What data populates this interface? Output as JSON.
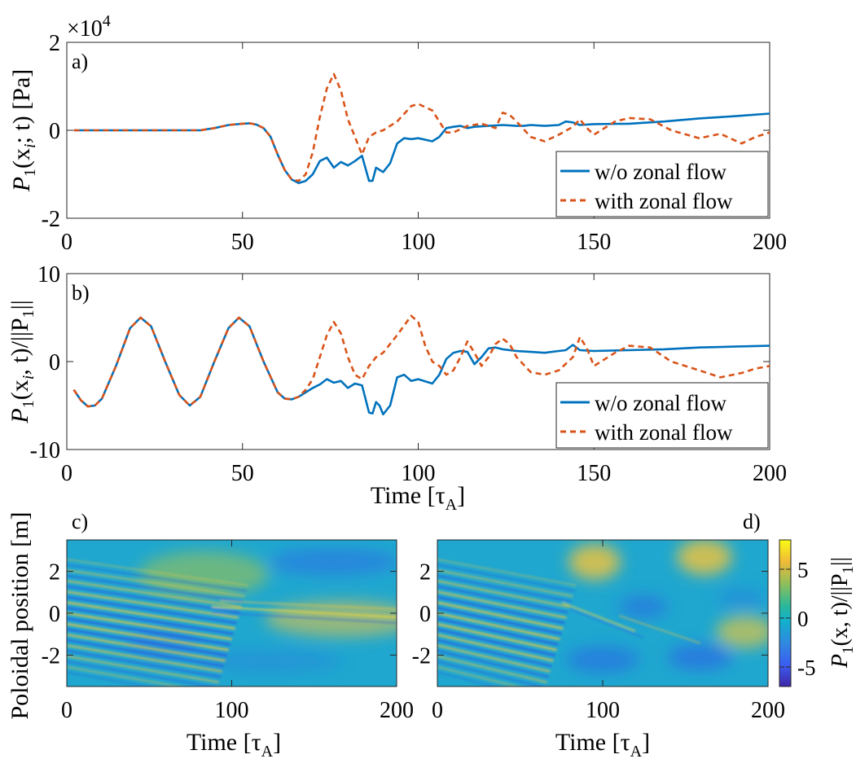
{
  "chart_data": [
    {
      "type": "line",
      "panel_label": "a)",
      "exponent_label": "×10",
      "exponent_power": "4",
      "ylabel_main": "P",
      "ylabel_sub": "1",
      "ylabel_rest": "(x",
      "ylabel_sub2": "i",
      "ylabel_end": "; t)  [Pa]",
      "xlim": [
        0,
        200
      ],
      "ylim": [
        -2,
        2
      ],
      "xticks": [
        "0",
        "50",
        "100",
        "150",
        "200"
      ],
      "yticks": [
        "-2",
        "0",
        "2"
      ],
      "legend_position": "bottom-right",
      "series": [
        {
          "name": "w/o zonal flow",
          "color": "#0072BD",
          "style": "solid",
          "x": [
            2,
            10,
            20,
            30,
            38,
            42,
            46,
            50,
            52,
            54,
            56,
            58,
            60,
            62,
            64,
            66,
            68,
            70,
            72,
            74,
            76,
            78,
            80,
            82,
            84,
            86,
            87,
            88,
            90,
            92,
            94,
            96,
            98,
            100,
            104,
            106,
            108,
            110,
            112,
            114,
            116,
            120,
            124,
            128,
            130,
            132,
            136,
            140,
            142,
            144,
            146,
            150,
            160,
            170,
            180,
            190,
            200
          ],
          "y": [
            0,
            0,
            0,
            0,
            0,
            0.05,
            0.12,
            0.15,
            0.16,
            0.13,
            0.05,
            -0.15,
            -0.55,
            -0.9,
            -1.12,
            -1.2,
            -1.15,
            -1.0,
            -0.7,
            -0.62,
            -0.85,
            -0.72,
            -0.8,
            -0.7,
            -0.58,
            -1.15,
            -1.15,
            -0.85,
            -0.95,
            -0.75,
            -0.3,
            -0.18,
            -0.2,
            -0.18,
            -0.25,
            -0.15,
            0.05,
            0.08,
            0.1,
            0.05,
            0.08,
            0.1,
            0.12,
            0.1,
            0.1,
            0.12,
            0.1,
            0.12,
            0.2,
            0.18,
            0.12,
            0.14,
            0.15,
            0.2,
            0.27,
            0.32,
            0.38
          ]
        },
        {
          "name": "with zonal flow",
          "color": "#D95319",
          "style": "dashed",
          "x": [
            2,
            10,
            20,
            30,
            38,
            42,
            46,
            50,
            52,
            54,
            56,
            58,
            60,
            62,
            64,
            66,
            68,
            70,
            72,
            74,
            76,
            78,
            80,
            82,
            84,
            86,
            88,
            90,
            94,
            98,
            100,
            104,
            106,
            108,
            110,
            114,
            118,
            122,
            124,
            126,
            128,
            132,
            136,
            140,
            144,
            146,
            148,
            150,
            156,
            160,
            166,
            172,
            180,
            186,
            192,
            196,
            200
          ],
          "y": [
            0,
            0,
            0,
            0,
            0,
            0.05,
            0.12,
            0.15,
            0.16,
            0.13,
            0.05,
            -0.15,
            -0.55,
            -0.9,
            -1.12,
            -1.15,
            -1.0,
            -0.5,
            0.3,
            0.95,
            1.28,
            0.9,
            0.25,
            -0.15,
            -0.55,
            -0.15,
            -0.05,
            0,
            0.2,
            0.55,
            0.6,
            0.45,
            0.2,
            -0.05,
            -0.05,
            0.1,
            0.15,
            0.05,
            0.4,
            0.35,
            0.2,
            -0.15,
            -0.25,
            -0.1,
            0.08,
            0.25,
            0.05,
            -0.1,
            0.2,
            0.28,
            0.25,
            0.0,
            -0.18,
            -0.08,
            -0.3,
            -0.15,
            -0.05
          ]
        }
      ]
    },
    {
      "type": "line",
      "panel_label": "b)",
      "ylabel_main": "P",
      "ylabel_sub": "1",
      "ylabel_rest": "(x",
      "ylabel_sub2": "i",
      "ylabel_end": ", t)/||P",
      "ylabel_sub3": "1",
      "ylabel_end2": "||",
      "xlabel": "Time [τ",
      "xlabel_sub": "A",
      "xlabel_end": "]",
      "xlim": [
        0,
        200
      ],
      "ylim": [
        -10,
        10
      ],
      "xticks": [
        "0",
        "50",
        "100",
        "150",
        "200"
      ],
      "yticks": [
        "-10",
        "0",
        "10"
      ],
      "legend_position": "bottom-right",
      "series": [
        {
          "name": "w/o zonal flow",
          "color": "#0072BD",
          "style": "solid",
          "x": [
            2,
            4,
            6,
            8,
            10,
            14,
            18,
            21,
            24,
            28,
            32,
            35,
            38,
            42,
            46,
            49,
            52,
            56,
            60,
            62,
            64,
            66,
            68,
            70,
            72,
            74,
            76,
            78,
            80,
            82,
            84,
            86,
            87,
            88,
            89,
            90,
            92,
            94,
            96,
            98,
            100,
            104,
            106,
            108,
            110,
            112,
            114,
            116,
            118,
            120,
            122,
            124,
            128,
            132,
            136,
            140,
            142,
            144,
            146,
            150,
            160,
            170,
            180,
            190,
            200
          ],
          "y": [
            -3.2,
            -4.4,
            -5.1,
            -5.0,
            -4.2,
            -0.5,
            3.8,
            5.0,
            4.0,
            0,
            -3.8,
            -5.0,
            -4.0,
            0,
            3.8,
            5.0,
            4.0,
            0,
            -3.5,
            -4.2,
            -4.3,
            -4.0,
            -3.5,
            -3.0,
            -2.6,
            -2.0,
            -2.4,
            -2.2,
            -3.0,
            -2.5,
            -2.7,
            -5.8,
            -5.9,
            -4.6,
            -5.0,
            -6.0,
            -5.0,
            -1.8,
            -1.5,
            -2.2,
            -2.0,
            -2.5,
            -1.5,
            0.3,
            1.0,
            1.2,
            1.1,
            -0.3,
            0.5,
            1.5,
            1.6,
            1.4,
            1.2,
            1.1,
            1.0,
            1.2,
            1.3,
            1.9,
            1.3,
            1.2,
            1.3,
            1.4,
            1.6,
            1.7,
            1.8
          ]
        },
        {
          "name": "with zonal flow",
          "color": "#D95319",
          "style": "dashed",
          "x": [
            2,
            4,
            6,
            8,
            10,
            14,
            18,
            21,
            24,
            28,
            32,
            35,
            38,
            42,
            46,
            49,
            52,
            56,
            60,
            62,
            64,
            66,
            68,
            70,
            72,
            74,
            76,
            78,
            80,
            82,
            84,
            86,
            88,
            90,
            94,
            98,
            100,
            102,
            104,
            106,
            108,
            110,
            112,
            114,
            116,
            118,
            120,
            122,
            124,
            126,
            128,
            132,
            136,
            140,
            144,
            146,
            148,
            150,
            156,
            160,
            166,
            172,
            180,
            186,
            192,
            196,
            200
          ],
          "y": [
            -3.2,
            -4.4,
            -5.1,
            -5.0,
            -4.2,
            -0.5,
            3.8,
            5.0,
            4.0,
            0,
            -3.8,
            -5.0,
            -4.0,
            0,
            3.8,
            5.0,
            4.0,
            0,
            -3.5,
            -4.2,
            -4.3,
            -4.0,
            -3.2,
            -2.0,
            0.5,
            3.0,
            4.5,
            3.2,
            0.5,
            -1.5,
            -2.0,
            -0.5,
            0.5,
            1.0,
            3.0,
            5.2,
            4.5,
            1.8,
            0.0,
            -0.5,
            -1.5,
            -1.0,
            0.5,
            2.3,
            1.0,
            -0.5,
            0.5,
            2.0,
            2.6,
            2.0,
            0.5,
            -1.2,
            -1.5,
            -1.0,
            0.5,
            2.8,
            1.5,
            -0.5,
            1.0,
            1.8,
            1.6,
            0.0,
            -1.0,
            -1.8,
            -1.3,
            -0.8,
            -0.5
          ]
        }
      ]
    },
    {
      "type": "heatmap",
      "panel_label": "c)",
      "ylabel": "Poloidal position  [m]",
      "xlabel": "Time [τ",
      "xlabel_sub": "A",
      "xlabel_end": "]",
      "xlim": [
        0,
        200
      ],
      "ylim": [
        -3.5,
        3.5
      ],
      "xticks": [
        "0",
        "100",
        "200"
      ],
      "yticks": [
        "-2",
        "0",
        "2"
      ]
    },
    {
      "type": "heatmap",
      "panel_label": "d)",
      "xlabel": "Time [τ",
      "xlabel_sub": "A",
      "xlabel_end": "]",
      "xlim": [
        0,
        200
      ],
      "ylim": [
        -3.5,
        3.5
      ],
      "xticks": [
        "0",
        "100",
        "200"
      ],
      "yticks": [
        "-2",
        "0",
        "2"
      ],
      "colorbar": {
        "range": [
          -7,
          8
        ],
        "ticks": [
          "5",
          "0",
          "-5"
        ],
        "label_main": "P",
        "label_sub": "1",
        "label_rest": "(x, t)/||P",
        "label_sub2": "1",
        "label_end": "||"
      }
    }
  ]
}
